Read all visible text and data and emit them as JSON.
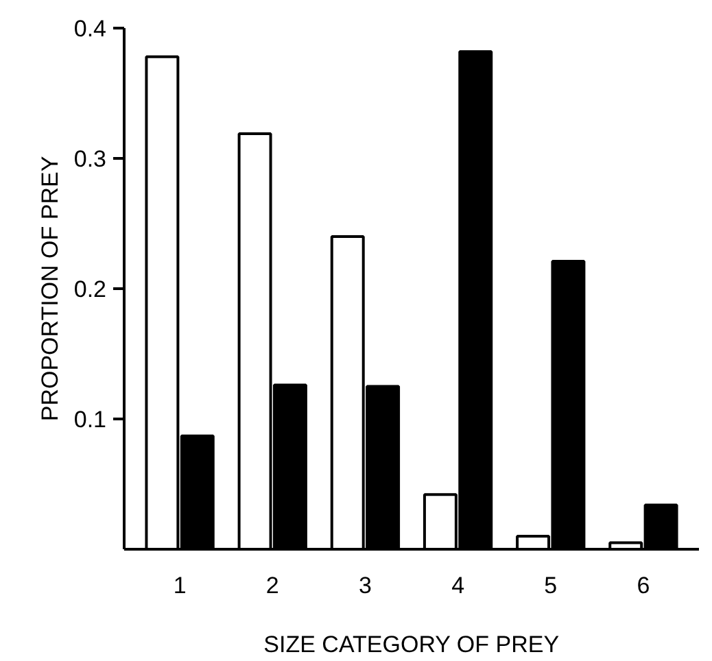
{
  "chart_data": {
    "type": "bar",
    "xlabel": "SIZE CATEGORY OF PREY",
    "ylabel": "PROPORTION OF PREY",
    "categories": [
      "1",
      "2",
      "3",
      "4",
      "5",
      "6"
    ],
    "series": [
      {
        "color": "#ffffff",
        "values": [
          0.378,
          0.319,
          0.24,
          0.042,
          0.01,
          0.005
        ]
      },
      {
        "color": "#000000",
        "values": [
          0.087,
          0.126,
          0.125,
          0.382,
          0.221,
          0.034
        ]
      }
    ],
    "ylim": [
      0,
      0.4
    ],
    "yticks": [
      0.1,
      0.2,
      0.3,
      0.4
    ],
    "grid": false
  }
}
